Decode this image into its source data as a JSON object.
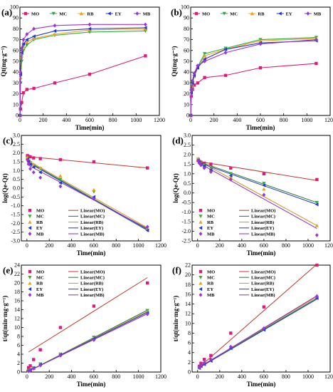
{
  "colors": {
    "MO": "#e0197a",
    "MC": "#2fae3a",
    "RB": "#e8a21c",
    "EY": "#2536d6",
    "MB": "#9b35d4",
    "fit_MO": "#c0392b",
    "fit_MC": "#237a2e",
    "fit_RB": "#d8901a",
    "fit_EY": "#1f3bcf",
    "fit_MB": "#8e2bc2"
  },
  "chart_data": [
    {
      "panel": "(a)",
      "type": "line",
      "legend_position": "top",
      "xlabel": "Time(min)",
      "ylabel": "Qt(mg·g⁻¹)",
      "xlim": [
        0,
        1200
      ],
      "ylim": [
        0,
        100
      ],
      "xticks": [
        0,
        200,
        400,
        600,
        800,
        1000,
        1200
      ],
      "yticks": [
        0,
        10,
        20,
        30,
        40,
        50,
        60,
        70,
        80,
        90,
        100
      ],
      "x": [
        0,
        5,
        15,
        30,
        60,
        120,
        300,
        600,
        1080
      ],
      "series": [
        {
          "name": "MO",
          "key": "MO",
          "marker": "square",
          "values": [
            0,
            6,
            12,
            21,
            24,
            25,
            30,
            38,
            55
          ]
        },
        {
          "name": "MC",
          "key": "MC",
          "marker": "tri-down",
          "values": [
            0,
            30,
            50,
            60,
            65,
            70,
            74,
            77,
            78
          ]
        },
        {
          "name": "RB",
          "key": "RB",
          "marker": "tri-up",
          "values": [
            0,
            35,
            55,
            64,
            68,
            71,
            75,
            79,
            80
          ]
        },
        {
          "name": "EY",
          "key": "EY",
          "marker": "tri-left",
          "values": [
            0,
            38,
            58,
            66,
            70,
            73,
            78,
            80,
            81
          ]
        },
        {
          "name": "MB",
          "key": "MB",
          "marker": "diamond",
          "values": [
            0,
            40,
            62,
            70,
            75,
            80,
            83,
            84,
            84
          ]
        }
      ]
    },
    {
      "panel": "(b)",
      "type": "line",
      "legend_position": "top",
      "xlabel": "Time(min)",
      "ylabel": "Qt(mg·g⁻¹)",
      "xlim": [
        0,
        1200
      ],
      "ylim": [
        0,
        100
      ],
      "xticks": [
        0,
        200,
        400,
        600,
        800,
        1000,
        1200
      ],
      "yticks": [
        0,
        10,
        20,
        30,
        40,
        50,
        60,
        70,
        80,
        90,
        100
      ],
      "x": [
        0,
        5,
        15,
        30,
        60,
        120,
        300,
        600,
        1080
      ],
      "series": [
        {
          "name": "MO",
          "key": "MO",
          "marker": "square",
          "values": [
            0,
            18,
            24,
            28,
            30,
            35,
            37,
            44,
            48
          ]
        },
        {
          "name": "MC",
          "key": "MC",
          "marker": "tri-down",
          "values": [
            0,
            22,
            30,
            38,
            45,
            57,
            62,
            70,
            72
          ]
        },
        {
          "name": "RB",
          "key": "RB",
          "marker": "tri-up",
          "values": [
            0,
            20,
            28,
            36,
            44,
            55,
            61,
            69,
            71
          ]
        },
        {
          "name": "EY",
          "key": "EY",
          "marker": "tri-left",
          "values": [
            0,
            21,
            30,
            37,
            44,
            52,
            61,
            67,
            69
          ]
        },
        {
          "name": "MB",
          "key": "MB",
          "marker": "diamond",
          "values": [
            0,
            24,
            32,
            39,
            46,
            50,
            58,
            66,
            70
          ]
        }
      ]
    },
    {
      "panel": "(c)",
      "type": "scatter",
      "legend_position": "bottom-left",
      "xlabel": "Time(min)",
      "ylabel": "log(Qe-Qt)",
      "xlim": [
        -50,
        1200
      ],
      "ylim": [
        -3.0,
        3.0
      ],
      "xticks": [
        0,
        200,
        400,
        600,
        800,
        1000,
        1200
      ],
      "yticks": [
        -3.0,
        -2.5,
        -2.0,
        -1.5,
        -1.0,
        -0.5,
        0.0,
        0.5,
        1.0,
        1.5,
        2.0,
        2.5,
        3.0
      ],
      "x": [
        5,
        15,
        30,
        60,
        120,
        300,
        600,
        1080
      ],
      "series": [
        {
          "name": "MO",
          "key": "MO",
          "marker": "square",
          "values": [
            1.85,
            1.8,
            1.78,
            1.72,
            1.68,
            1.62,
            1.5,
            1.15
          ]
        },
        {
          "name": "MC",
          "key": "MC",
          "marker": "tri-down",
          "values": [
            1.7,
            1.55,
            1.45,
            1.3,
            1.1,
            0.5,
            -0.2,
            -2.4
          ]
        },
        {
          "name": "RB",
          "key": "RB",
          "marker": "tri-up",
          "values": [
            1.75,
            1.6,
            1.5,
            1.35,
            1.15,
            0.7,
            -0.1,
            -2.3
          ]
        },
        {
          "name": "EY",
          "key": "EY",
          "marker": "tri-left",
          "values": [
            1.65,
            1.5,
            1.35,
            1.2,
            0.9,
            0.3,
            -0.5,
            -2.4
          ]
        },
        {
          "name": "MB",
          "key": "MB",
          "marker": "diamond",
          "values": [
            1.6,
            1.4,
            1.1,
            0.9,
            0.6,
            0.1,
            -0.6,
            -2.2
          ]
        }
      ],
      "fits": [
        {
          "name": "Linear(MO)",
          "key": "fit_MO",
          "x": [
            0,
            1080
          ],
          "y": [
            1.8,
            1.15
          ]
        },
        {
          "name": "Linear(MC)",
          "key": "fit_MC",
          "x": [
            0,
            1080
          ],
          "y": [
            1.55,
            -2.35
          ]
        },
        {
          "name": "Linear(RB)",
          "key": "fit_RB",
          "x": [
            0,
            1080
          ],
          "y": [
            1.6,
            -2.25
          ]
        },
        {
          "name": "Linear(EY)",
          "key": "fit_EY",
          "x": [
            0,
            1080
          ],
          "y": [
            1.5,
            -2.4
          ]
        },
        {
          "name": "Linear(MB)",
          "key": "fit_MB",
          "x": [
            0,
            1080
          ],
          "y": [
            1.35,
            -2.3
          ]
        }
      ]
    },
    {
      "panel": "(d)",
      "type": "scatter",
      "legend_position": "bottom-left",
      "xlabel": "Time(min)",
      "ylabel": "log(Qe-Qt)",
      "xlim": [
        -50,
        1200
      ],
      "ylim": [
        -2.5,
        3.0
      ],
      "xticks": [
        0,
        200,
        400,
        600,
        800,
        1000,
        1200
      ],
      "yticks": [
        -2.5,
        -2.0,
        -1.5,
        -1.0,
        -0.5,
        0.0,
        0.5,
        1.0,
        1.5,
        2.0,
        2.5,
        3.0
      ],
      "x": [
        5,
        15,
        30,
        60,
        120,
        300,
        600,
        1080
      ],
      "series": [
        {
          "name": "MO",
          "key": "MO",
          "marker": "square",
          "values": [
            1.7,
            1.65,
            1.6,
            1.55,
            1.5,
            1.3,
            1.0,
            0.7
          ]
        },
        {
          "name": "MC",
          "key": "MC",
          "marker": "tri-down",
          "values": [
            1.75,
            1.65,
            1.55,
            1.45,
            1.3,
            1.0,
            0.5,
            -0.5
          ]
        },
        {
          "name": "RB",
          "key": "RB",
          "marker": "tri-up",
          "values": [
            1.8,
            1.7,
            1.55,
            1.4,
            1.2,
            0.8,
            0.2,
            -1.7
          ]
        },
        {
          "name": "EY",
          "key": "EY",
          "marker": "tri-left",
          "values": [
            1.7,
            1.6,
            1.5,
            1.4,
            1.2,
            0.9,
            0.4,
            -0.6
          ]
        },
        {
          "name": "MB",
          "key": "MB",
          "marker": "diamond",
          "values": [
            1.7,
            1.55,
            1.45,
            1.3,
            1.1,
            0.7,
            -0.1,
            -2.2
          ]
        }
      ],
      "fits": [
        {
          "name": "Linear(MO)",
          "key": "fit_MO",
          "x": [
            0,
            1080
          ],
          "y": [
            1.65,
            0.65
          ]
        },
        {
          "name": "Linear(MC)",
          "key": "fit_MC",
          "x": [
            0,
            1080
          ],
          "y": [
            1.65,
            -0.5
          ]
        },
        {
          "name": "Linear(RB)",
          "key": "fit_RB",
          "x": [
            0,
            1080
          ],
          "y": [
            1.7,
            -1.7
          ]
        },
        {
          "name": "Linear(EY)",
          "key": "fit_EY",
          "x": [
            0,
            1080
          ],
          "y": [
            1.6,
            -0.6
          ]
        },
        {
          "name": "Linear(MB)",
          "key": "fit_MB",
          "x": [
            0,
            1080
          ],
          "y": [
            1.6,
            -1.85
          ]
        }
      ]
    },
    {
      "panel": "(e)",
      "type": "scatter",
      "legend_position": "top-left",
      "xlabel": "Time(min)",
      "ylabel": "t/qt(min·mg·g⁻¹)",
      "xlim": [
        -50,
        1200
      ],
      "ylim": [
        0,
        24
      ],
      "xticks": [
        0,
        200,
        400,
        600,
        800,
        1000,
        1200
      ],
      "yticks": [
        0,
        2,
        4,
        6,
        8,
        10,
        12,
        14,
        16,
        18,
        20,
        22,
        24
      ],
      "x": [
        15,
        30,
        60,
        120,
        300,
        600,
        1080
      ],
      "series": [
        {
          "name": "MO",
          "key": "MO",
          "marker": "square",
          "values": [
            1.0,
            1.4,
            2.8,
            5.0,
            10.0,
            14.8,
            20.0
          ]
        },
        {
          "name": "MC",
          "key": "MC",
          "marker": "tri-down",
          "values": [
            0.3,
            0.5,
            0.9,
            1.8,
            4.0,
            7.8,
            13.8
          ]
        },
        {
          "name": "RB",
          "key": "RB",
          "marker": "tri-up",
          "values": [
            0.3,
            0.5,
            0.9,
            1.7,
            4.0,
            7.6,
            13.5
          ]
        },
        {
          "name": "EY",
          "key": "EY",
          "marker": "tri-left",
          "values": [
            0.3,
            0.5,
            0.9,
            1.7,
            3.9,
            7.5,
            13.3
          ]
        },
        {
          "name": "MB",
          "key": "MB",
          "marker": "diamond",
          "values": [
            0.2,
            0.4,
            0.8,
            1.5,
            3.7,
            7.2,
            13.0
          ]
        }
      ],
      "fits": [
        {
          "name": "Linear(MO)",
          "key": "fit_MO",
          "x": [
            15,
            1080
          ],
          "y": [
            4.5,
            21.2
          ]
        },
        {
          "name": "Linear(MC)",
          "key": "fit_MC",
          "x": [
            15,
            1080
          ],
          "y": [
            0.2,
            13.9
          ]
        },
        {
          "name": "Linear(RB)",
          "key": "fit_RB",
          "x": [
            15,
            1080
          ],
          "y": [
            0.2,
            13.6
          ]
        },
        {
          "name": "Linear(EY)",
          "key": "fit_EY",
          "x": [
            15,
            1080
          ],
          "y": [
            0.2,
            13.4
          ]
        },
        {
          "name": "Linear(MB)",
          "key": "fit_MB",
          "x": [
            15,
            1080
          ],
          "y": [
            0.2,
            13.1
          ]
        }
      ]
    },
    {
      "panel": "(f)",
      "type": "scatter",
      "legend_position": "top-left",
      "xlabel": "Time(min)",
      "ylabel": "t/qt(min·mg·g⁻¹)",
      "xlim": [
        -50,
        1200
      ],
      "ylim": [
        0,
        22
      ],
      "xticks": [
        0,
        200,
        400,
        600,
        800,
        1000,
        1200
      ],
      "yticks": [
        0,
        2,
        4,
        6,
        8,
        10,
        12,
        14,
        16,
        18,
        20,
        22
      ],
      "x": [
        15,
        30,
        60,
        120,
        300,
        600,
        1080
      ],
      "series": [
        {
          "name": "MO",
          "key": "MO",
          "marker": "square",
          "values": [
            1.2,
            1.8,
            2.6,
            3.4,
            8.0,
            13.4,
            22.0
          ]
        },
        {
          "name": "MC",
          "key": "MC",
          "marker": "tri-down",
          "values": [
            0.9,
            1.3,
            1.7,
            2.4,
            5.0,
            8.8,
            15.3
          ]
        },
        {
          "name": "RB",
          "key": "RB",
          "marker": "tri-up",
          "values": [
            0.9,
            1.3,
            1.8,
            2.5,
            5.1,
            8.9,
            15.5
          ]
        },
        {
          "name": "EY",
          "key": "EY",
          "marker": "tri-left",
          "values": [
            0.8,
            1.2,
            1.6,
            2.3,
            4.9,
            8.7,
            15.2
          ]
        },
        {
          "name": "MB",
          "key": "MB",
          "marker": "diamond",
          "values": [
            0.9,
            1.4,
            1.9,
            2.6,
            5.2,
            9.0,
            15.6
          ]
        }
      ],
      "fits": [
        {
          "name": "Linear(MO)",
          "key": "fit_MO",
          "x": [
            15,
            1080
          ],
          "y": [
            1.0,
            22.2
          ]
        },
        {
          "name": "Linear(MC)",
          "key": "fit_MC",
          "x": [
            15,
            1080
          ],
          "y": [
            1.0,
            15.2
          ]
        },
        {
          "name": "Linear(RB)",
          "key": "fit_RB",
          "x": [
            15,
            1080
          ],
          "y": [
            1.0,
            15.5
          ]
        },
        {
          "name": "Linear(EY)",
          "key": "fit_EY",
          "x": [
            15,
            1080
          ],
          "y": [
            0.9,
            15.0
          ]
        },
        {
          "name": "Linear(MB)",
          "key": "fit_MB",
          "x": [
            15,
            1080
          ],
          "y": [
            1.0,
            15.7
          ]
        }
      ]
    }
  ]
}
